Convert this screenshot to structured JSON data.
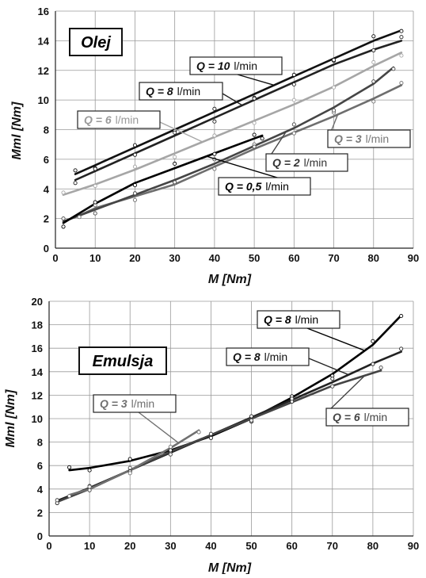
{
  "chart_data": [
    {
      "type": "line",
      "title": "Olej",
      "xlabel": "M [Nm]",
      "ylabel": "Mml [Nm]",
      "xlim": [
        0,
        90
      ],
      "ylim": [
        0,
        16
      ],
      "xticks": [
        "0",
        "10",
        "20",
        "30",
        "40",
        "50",
        "60",
        "70",
        "80",
        "90"
      ],
      "yticks": [
        "0",
        "2",
        "4",
        "6",
        "8",
        "10",
        "12",
        "14",
        "16"
      ],
      "grid": true,
      "series": [
        {
          "name": "Q = 10 l/min",
          "q": "Q = 10",
          "unit": "l/min",
          "color": "#111111",
          "x": [
            5,
            10,
            20,
            30,
            40,
            50,
            60,
            70,
            80,
            87
          ],
          "y": [
            5.0,
            5.6,
            6.8,
            8.0,
            9.2,
            10.4,
            11.6,
            12.8,
            14.0,
            14.7
          ]
        },
        {
          "name": "Q = 8 l/min",
          "q": "Q = 8",
          "unit": "l/min",
          "color": "#222222",
          "x": [
            5,
            10,
            20,
            30,
            40,
            50,
            60,
            70,
            80,
            87
          ],
          "y": [
            4.6,
            5.2,
            6.4,
            7.6,
            8.8,
            10.0,
            11.2,
            12.4,
            13.4,
            14.0
          ]
        },
        {
          "name": "Q = 6 l/min",
          "q": "Q = 6",
          "unit": "l/min",
          "color": "#a6a6a6",
          "x": [
            2,
            10,
            20,
            30,
            40,
            50,
            60,
            70,
            80,
            87
          ],
          "y": [
            3.6,
            4.3,
            5.3,
            6.4,
            7.5,
            8.6,
            9.7,
            10.9,
            12.3,
            13.2
          ]
        },
        {
          "name": "Q = 3 l/min",
          "q": "Q = 3",
          "unit": "l/min",
          "color": "#6e6e6e",
          "x": [
            6,
            10,
            20,
            30,
            40,
            50,
            60,
            70,
            80,
            87
          ],
          "y": [
            2.2,
            2.7,
            3.5,
            4.3,
            5.5,
            6.7,
            7.8,
            8.9,
            10.1,
            11.0
          ]
        },
        {
          "name": "Q = 2 l/min",
          "q": "Q = 2",
          "unit": "l/min",
          "color": "#454545",
          "x": [
            2,
            10,
            20,
            30,
            40,
            50,
            60,
            70,
            80,
            85
          ],
          "y": [
            1.8,
            2.6,
            3.6,
            4.6,
            5.7,
            6.9,
            8.1,
            9.5,
            11.1,
            12.2
          ]
        },
        {
          "name": "Q = 0,5 l/min",
          "q": "Q = 0,5",
          "unit": "l/min",
          "color": "#000000",
          "x": [
            2,
            10,
            20,
            30,
            40,
            50,
            52
          ],
          "y": [
            1.7,
            3.0,
            4.4,
            5.4,
            6.4,
            7.4,
            7.6
          ]
        }
      ]
    },
    {
      "type": "line",
      "title": "Emulsja",
      "xlabel": "M [Nm]",
      "ylabel": "Mml [Nm]",
      "xlim": [
        0,
        90
      ],
      "ylim": [
        0,
        20
      ],
      "xticks": [
        "0",
        "10",
        "20",
        "30",
        "40",
        "50",
        "60",
        "70",
        "80",
        "90"
      ],
      "yticks": [
        "0",
        "2",
        "4",
        "6",
        "8",
        "10",
        "12",
        "14",
        "16",
        "18",
        "20"
      ],
      "grid": true,
      "series": [
        {
          "name": "Q = 8 l/min",
          "q": "Q = 8",
          "unit": "l/min",
          "color": "#000000",
          "x": [
            5,
            10,
            20,
            30,
            40,
            50,
            60,
            70,
            80,
            87
          ],
          "y": [
            5.6,
            5.8,
            6.4,
            7.3,
            8.5,
            10.0,
            11.8,
            13.8,
            16.3,
            18.8
          ]
        },
        {
          "name": "Q = 8 l/min",
          "q": "Q = 8",
          "unit": "l/min",
          "color": "#222222",
          "x": [
            2,
            10,
            20,
            30,
            40,
            50,
            60,
            70,
            80,
            87
          ],
          "y": [
            3.0,
            4.1,
            5.6,
            7.1,
            8.6,
            10.1,
            11.6,
            13.1,
            14.7,
            15.7
          ]
        },
        {
          "name": "Q = 6 l/min",
          "q": "Q = 6",
          "unit": "l/min",
          "color": "#444444",
          "x": [
            2,
            10,
            20,
            30,
            40,
            50,
            60,
            70,
            82
          ],
          "y": [
            2.9,
            4.0,
            5.6,
            7.2,
            8.6,
            10.0,
            11.4,
            12.8,
            14.1
          ]
        },
        {
          "name": "Q = 3 l/min",
          "q": "Q = 3",
          "unit": "l/min",
          "color": "#707070",
          "x": [
            5,
            10,
            20,
            30,
            37
          ],
          "y": [
            3.5,
            4.0,
            5.6,
            7.5,
            9.0
          ]
        }
      ]
    }
  ]
}
